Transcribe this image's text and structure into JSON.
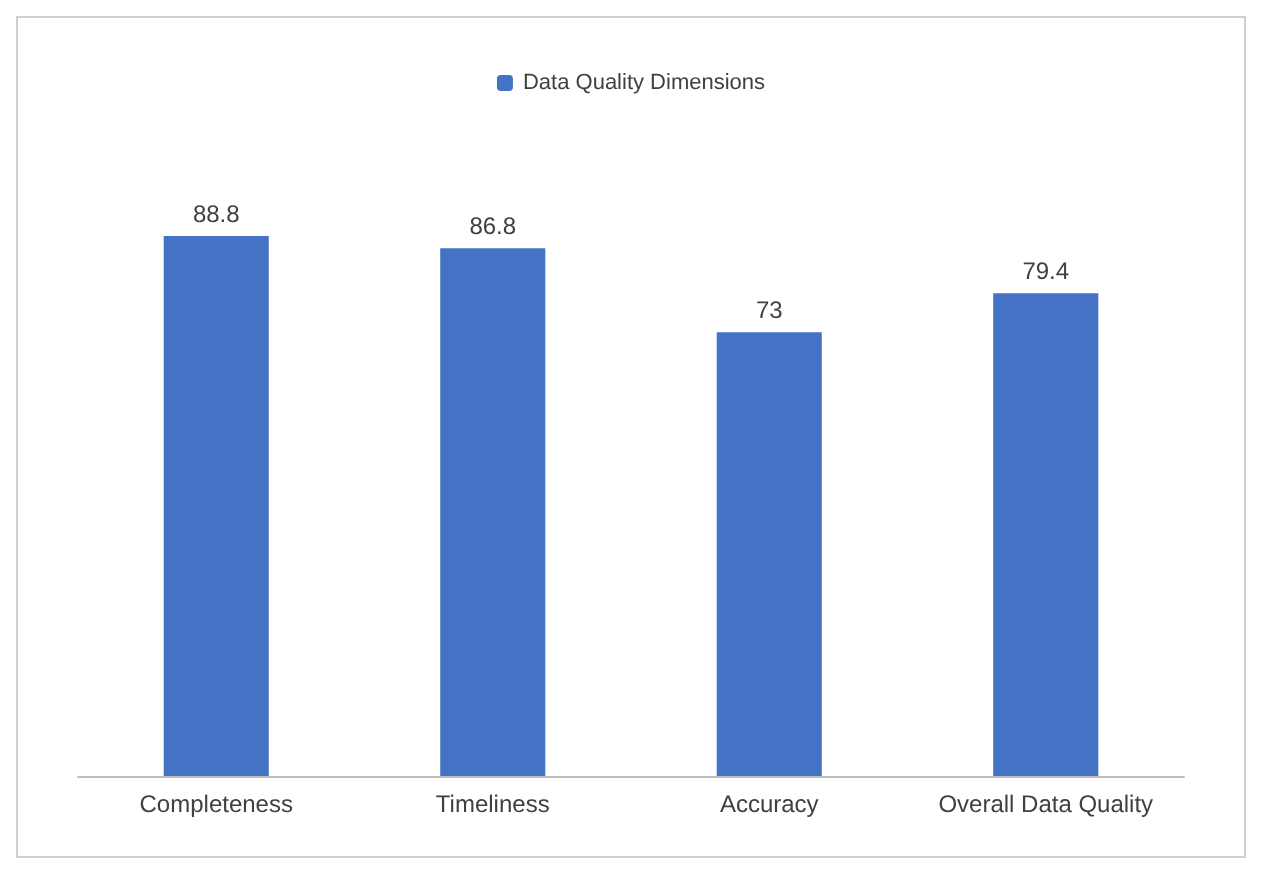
{
  "chart_data": {
    "type": "bar",
    "categories": [
      "Completeness",
      "Timeliness",
      "Accuracy",
      "Overall Data Quality"
    ],
    "series": [
      {
        "name": "Data Quality Dimensions",
        "color": "#4472c4",
        "values": [
          88.8,
          86.8,
          73,
          79.4
        ]
      }
    ],
    "data_labels": true,
    "legend": "top",
    "tick_labels": "x"
  }
}
